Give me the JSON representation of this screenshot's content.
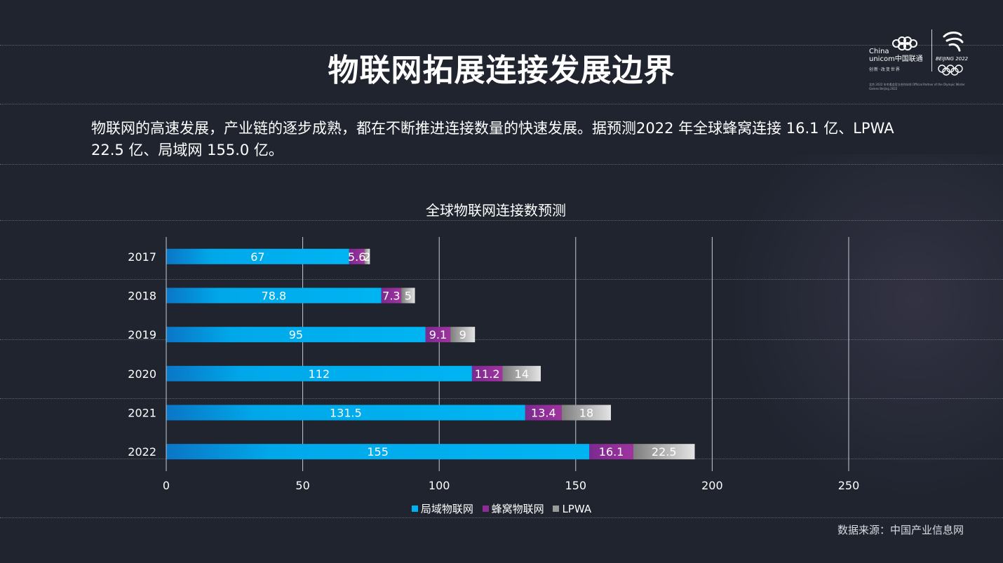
{
  "slide": {
    "title": "物联网拓展连接发展边界",
    "intro": "物联网的高速发展，产业链的逐步成熟，都在不断推进连接数量的快速发展。据预测2022 年全球蜂窝连接 16.1 亿、LPWA 22.5 亿、局域网 155.0 亿。",
    "source": "数据来源：中国产业信息网"
  },
  "logo": {
    "brand_line1": "China",
    "brand_line2": "unicom中国联通",
    "slogan": "创新·改变世界",
    "olympic": "BEIJING 2022",
    "fine_print": "北京 2022 年冬奥会官方合作伙伴 Official Partner of the Olympic Winter Games Beijing 2022"
  },
  "chart_data": {
    "type": "bar",
    "orientation": "horizontal",
    "stacked": true,
    "title": "全球物联网连接数预测",
    "xlabel": "",
    "ylabel": "",
    "categories": [
      "2017",
      "2018",
      "2019",
      "2020",
      "2021",
      "2022"
    ],
    "series": [
      {
        "name": "局域物联网",
        "values": [
          67,
          78.8,
          95,
          112,
          131.5,
          155
        ],
        "color": "#00b0f0",
        "labels": [
          "67",
          "78.8",
          "95",
          "112",
          "131.5",
          "155"
        ]
      },
      {
        "name": "蜂窝物联网",
        "values": [
          5.6,
          7.3,
          9.1,
          11.2,
          13.4,
          16.1
        ],
        "color": "#8e2b94",
        "labels": [
          "5.6",
          "7.3",
          "9.1",
          "11.2",
          "13.4",
          "16.1"
        ]
      },
      {
        "name": "LPWA",
        "values": [
          2,
          5,
          9,
          14,
          18,
          22.5
        ],
        "color": "#9a9a9a",
        "labels": [
          "2",
          "5",
          "9",
          "14",
          "18",
          "22.5"
        ]
      }
    ],
    "xlim": [
      0,
      250
    ],
    "xticks": [
      "0",
      "50",
      "100",
      "150",
      "200",
      "250"
    ],
    "grid": true,
    "legend_position": "bottom"
  }
}
